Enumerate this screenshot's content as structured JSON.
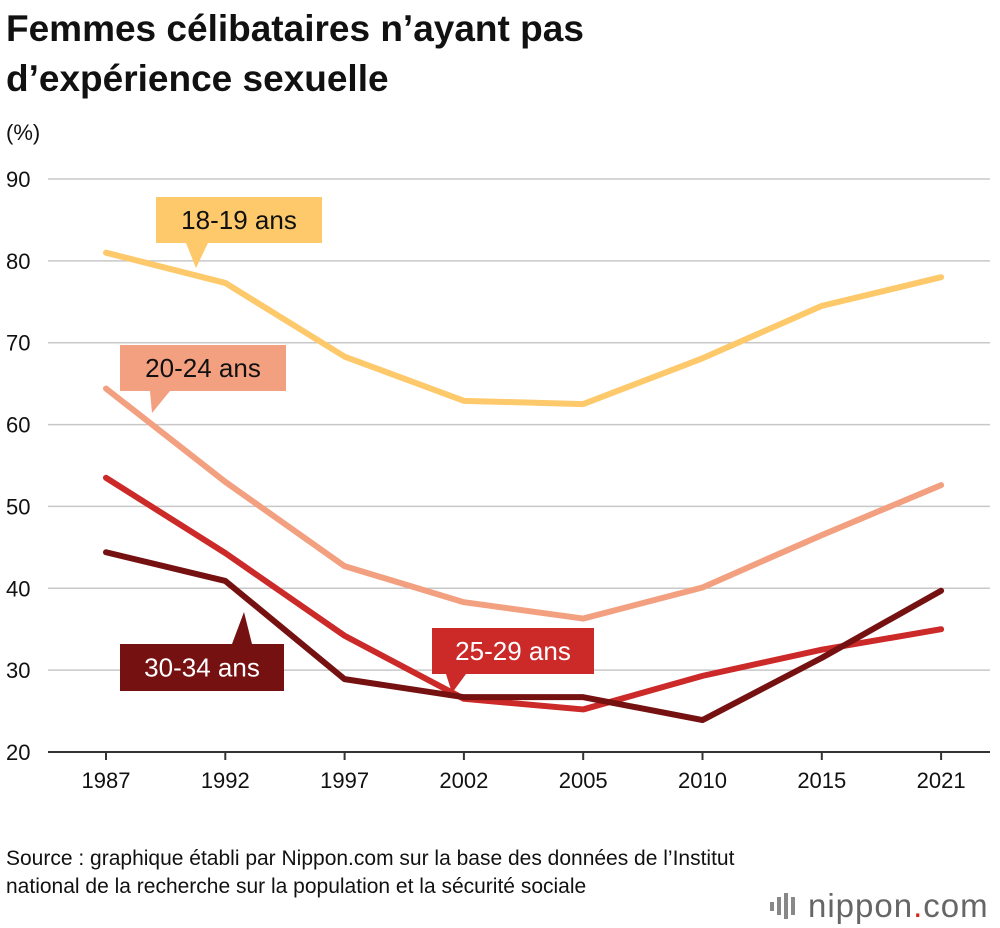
{
  "title": "Femmes célibataires n’ayant pas d’expérience sexuelle",
  "source": "Source : graphique établi par Nippon.com sur la base des données de l’Institut national de la recherche sur la population et la sécurité sociale",
  "logo": {
    "name": "nippon",
    "dot": ".",
    "tld": "com",
    "icon": "signal-bars-icon"
  },
  "chart_data": {
    "type": "line",
    "title": "Femmes célibataires n’ayant pas d’expérience sexuelle",
    "ylabel": "(%)",
    "xlabel": "",
    "ylim": [
      20,
      90
    ],
    "yticks": [
      20,
      30,
      40,
      50,
      60,
      70,
      80,
      90
    ],
    "categories": [
      "1987",
      "1992",
      "1997",
      "2002",
      "2005",
      "2010",
      "2015",
      "2021"
    ],
    "grid": true,
    "series": [
      {
        "name": "18-19 ans",
        "color": "#fdc96b",
        "labelColor": "#111111",
        "values": [
          81.0,
          77.3,
          68.3,
          62.9,
          62.5,
          68.1,
          74.5,
          78.0
        ]
      },
      {
        "name": "20-24 ans",
        "color": "#f2a07f",
        "labelColor": "#111111",
        "values": [
          64.4,
          53.0,
          42.7,
          38.3,
          36.3,
          40.1,
          46.5,
          52.6
        ]
      },
      {
        "name": "25-29 ans",
        "color": "#cc2929",
        "labelColor": "#ffffff",
        "values": [
          53.5,
          44.3,
          34.2,
          26.5,
          25.2,
          29.3,
          32.5,
          35.0
        ]
      },
      {
        "name": "30-34 ans",
        "color": "#761111",
        "labelColor": "#ffffff",
        "values": [
          44.4,
          40.9,
          28.9,
          26.7,
          26.7,
          23.9,
          31.5,
          39.7
        ]
      }
    ]
  }
}
